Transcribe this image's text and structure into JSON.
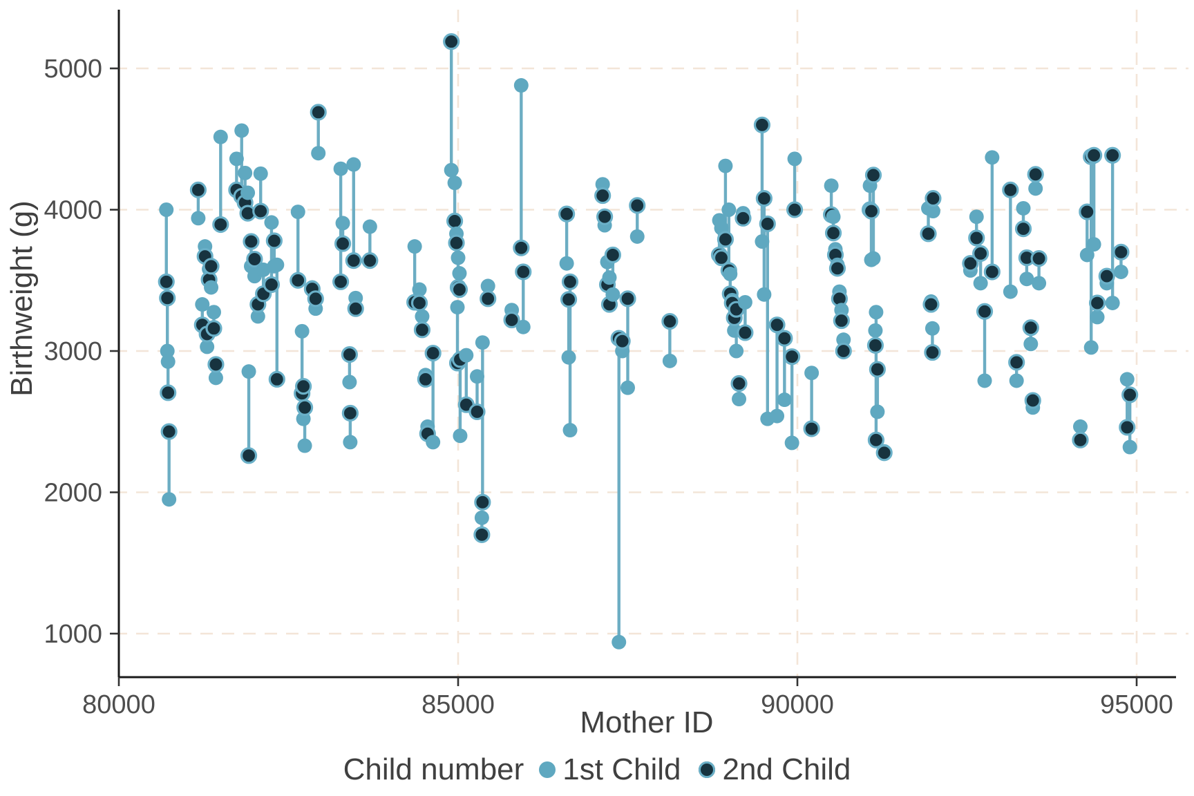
{
  "figure": {
    "kind": "ggplot-style paired scatter plot",
    "background": "#ffffff"
  },
  "axes": {
    "x": {
      "label": "Mother ID",
      "ticks": [
        80000,
        85000,
        90000,
        95000
      ]
    },
    "y": {
      "label": "Birthweight (g)",
      "ticks": [
        1000,
        2000,
        3000,
        4000,
        5000
      ]
    }
  },
  "legend": {
    "title": "Child number",
    "items": [
      {
        "label": "1st Child",
        "color": "#5fa8c0"
      },
      {
        "label": "2nd Child",
        "color": "#17333f",
        "ring": "#6ab0c8"
      }
    ]
  },
  "colors": {
    "first_child": "#5fa8c0",
    "second_child_fill": "#17333f",
    "second_child_ring": "#6ab0c8",
    "connector_line": "#6cadc3",
    "gridline": "#f3e5d8",
    "axis_line": "#1a1a1a",
    "tick_text": "#4d4d4d",
    "title_text": "#404040"
  },
  "chart_data": {
    "type": "scatter",
    "title": "",
    "xlabel": "Mother ID",
    "ylabel": "Birthweight (g)",
    "x_ticks": [
      80000,
      85000,
      90000,
      95000
    ],
    "y_ticks": [
      1000,
      2000,
      3000,
      4000,
      5000
    ],
    "xlim": [
      80000,
      95560
    ],
    "ylim": [
      690,
      5420
    ],
    "grid": "dashed",
    "legend_position": "bottom",
    "series_labels": [
      "1st Child",
      "2nd Child"
    ],
    "pairs_format": [
      "mother_id",
      "birthweight_first_child_g",
      "birthweight_second_child_g"
    ],
    "pairs": [
      [
        80700,
        4000,
        3490
      ],
      [
        80715,
        3000,
        3375
      ],
      [
        80725,
        2925,
        2705
      ],
      [
        80740,
        1950,
        2430
      ],
      [
        81170,
        3940,
        4140
      ],
      [
        81230,
        3330,
        3185
      ],
      [
        81270,
        3740,
        3670
      ],
      [
        81300,
        3030,
        3120
      ],
      [
        81330,
        3580,
        3505
      ],
      [
        81360,
        3450,
        3600
      ],
      [
        81400,
        3275,
        3160
      ],
      [
        81430,
        2810,
        2905
      ],
      [
        81500,
        4515,
        3895
      ],
      [
        81735,
        4360,
        4140
      ],
      [
        81810,
        4560,
        4095
      ],
      [
        81860,
        4260,
        4050
      ],
      [
        81900,
        4120,
        3975
      ],
      [
        81915,
        2855,
        2260
      ],
      [
        81950,
        3600,
        3775
      ],
      [
        82000,
        3530,
        3650
      ],
      [
        82050,
        3245,
        3330
      ],
      [
        82090,
        4255,
        3990
      ],
      [
        82130,
        3575,
        3405
      ],
      [
        82250,
        3910,
        3470
      ],
      [
        82290,
        3600,
        3780
      ],
      [
        82330,
        3610,
        2800
      ],
      [
        82640,
        3985,
        3500
      ],
      [
        82700,
        3140,
        2700
      ],
      [
        82720,
        2520,
        2750
      ],
      [
        82740,
        2330,
        2600
      ],
      [
        82850,
        3450,
        3440
      ],
      [
        82900,
        3300,
        3370
      ],
      [
        82940,
        4400,
        4690
      ],
      [
        83270,
        4290,
        3490
      ],
      [
        83300,
        3905,
        3760
      ],
      [
        83400,
        2780,
        2975
      ],
      [
        83410,
        2355,
        2560
      ],
      [
        83460,
        4320,
        3640
      ],
      [
        83490,
        3375,
        3300
      ],
      [
        83700,
        3880,
        3640
      ],
      [
        84360,
        3740,
        3345
      ],
      [
        84430,
        3435,
        3340
      ],
      [
        84470,
        3245,
        3150
      ],
      [
        84520,
        2830,
        2800
      ],
      [
        84550,
        2465,
        2415
      ],
      [
        84630,
        2355,
        2985
      ],
      [
        84900,
        4280,
        5190
      ],
      [
        84950,
        4190,
        3920
      ],
      [
        84975,
        3830,
        3765
      ],
      [
        84990,
        3310,
        2915
      ],
      [
        85000,
        3660,
        3450
      ],
      [
        85020,
        3550,
        3435
      ],
      [
        85030,
        2400,
        2940
      ],
      [
        85120,
        2970,
        2620
      ],
      [
        85280,
        2820,
        2570
      ],
      [
        85350,
        1820,
        1700
      ],
      [
        85360,
        3060,
        1930
      ],
      [
        85440,
        3460,
        3370
      ],
      [
        85790,
        3290,
        3220
      ],
      [
        85930,
        4880,
        3730
      ],
      [
        85960,
        3170,
        3560
      ],
      [
        86600,
        3620,
        3970
      ],
      [
        86630,
        2955,
        3365
      ],
      [
        86650,
        2440,
        3490
      ],
      [
        87130,
        4180,
        4100
      ],
      [
        87160,
        3890,
        3950
      ],
      [
        87200,
        3630,
        3470
      ],
      [
        87230,
        3520,
        3330
      ],
      [
        87280,
        3400,
        3680
      ],
      [
        87370,
        940,
        3090
      ],
      [
        87420,
        3000,
        3070
      ],
      [
        87500,
        2740,
        3370
      ],
      [
        87640,
        3810,
        4030
      ],
      [
        88120,
        2930,
        3210
      ],
      [
        88850,
        3925,
        3680
      ],
      [
        88880,
        3870,
        3660
      ],
      [
        88940,
        4310,
        3790
      ],
      [
        88990,
        4000,
        3570
      ],
      [
        89010,
        3545,
        3405
      ],
      [
        89040,
        3360,
        3340
      ],
      [
        89070,
        3145,
        3235
      ],
      [
        89100,
        3000,
        3295
      ],
      [
        89140,
        2660,
        2770
      ],
      [
        89200,
        3975,
        3940
      ],
      [
        89230,
        3345,
        3130
      ],
      [
        89480,
        3775,
        4600
      ],
      [
        89510,
        3400,
        4080
      ],
      [
        89560,
        2520,
        3900
      ],
      [
        89700,
        2540,
        3185
      ],
      [
        89810,
        2655,
        3090
      ],
      [
        89920,
        2350,
        2960
      ],
      [
        89960,
        4360,
        4000
      ],
      [
        90210,
        2845,
        2450
      ],
      [
        90500,
        4170,
        3965
      ],
      [
        90530,
        3950,
        3835
      ],
      [
        90560,
        3720,
        3680
      ],
      [
        90590,
        3610,
        3585
      ],
      [
        90620,
        3420,
        3370
      ],
      [
        90650,
        3290,
        3215
      ],
      [
        90680,
        3080,
        3000
      ],
      [
        91070,
        4170,
        4000
      ],
      [
        91090,
        3645,
        3990
      ],
      [
        91120,
        3655,
        4245
      ],
      [
        91150,
        3145,
        3040
      ],
      [
        91160,
        3275,
        2370
      ],
      [
        91180,
        2570,
        2870
      ],
      [
        91280,
        2290,
        2280
      ],
      [
        91930,
        4010,
        3830
      ],
      [
        91970,
        3350,
        3330
      ],
      [
        91990,
        3160,
        2990
      ],
      [
        92000,
        3990,
        4080
      ],
      [
        92550,
        3570,
        3620
      ],
      [
        92640,
        3950,
        3800
      ],
      [
        92700,
        3480,
        3690
      ],
      [
        92760,
        2790,
        3280
      ],
      [
        92870,
        4370,
        3560
      ],
      [
        93140,
        3420,
        4140
      ],
      [
        93230,
        2790,
        2920
      ],
      [
        93330,
        4010,
        3865
      ],
      [
        93380,
        3510,
        3660
      ],
      [
        93440,
        3050,
        3165
      ],
      [
        93470,
        2600,
        2650
      ],
      [
        93510,
        4150,
        4250
      ],
      [
        93560,
        3480,
        3655
      ],
      [
        94170,
        2465,
        2370
      ],
      [
        94270,
        3680,
        3985
      ],
      [
        94330,
        3025,
        4375
      ],
      [
        94370,
        3755,
        4385
      ],
      [
        94420,
        3240,
        3340
      ],
      [
        94560,
        3480,
        3530
      ],
      [
        94645,
        3340,
        4385
      ],
      [
        94770,
        3560,
        3700
      ],
      [
        94860,
        2800,
        2460
      ],
      [
        94900,
        2320,
        2690
      ]
    ]
  }
}
